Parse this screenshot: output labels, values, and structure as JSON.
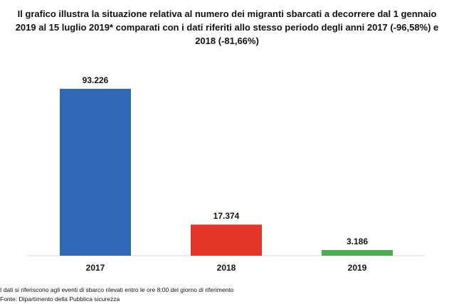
{
  "chart_data": {
    "type": "bar",
    "title": "Il grafico illustra la situazione relativa al numero dei migranti sbarcati a decorrere dal 1 gennaio 2019 al 15 luglio 2019* comparati con i dati riferiti allo stesso periodo degli anni 2017 (-96,58%) e 2018 (-81,66%)",
    "categories": [
      "2017",
      "2018",
      "2019"
    ],
    "values": [
      93226,
      17374,
      3186
    ],
    "value_labels": [
      "93.226",
      "17.374",
      "3.186"
    ],
    "colors": [
      "#3068b5",
      "#e33529",
      "#4cae50"
    ],
    "ylim": [
      0,
      100000
    ],
    "grid": false,
    "legend": "none"
  },
  "footnotes": {
    "note": "I dati si riferiscono agli eventi di sbarco rilevati entro le ore 8:00 del giorno di riferimento",
    "source": "Fonte: Dipartimento della Pubblica sicurezza"
  }
}
